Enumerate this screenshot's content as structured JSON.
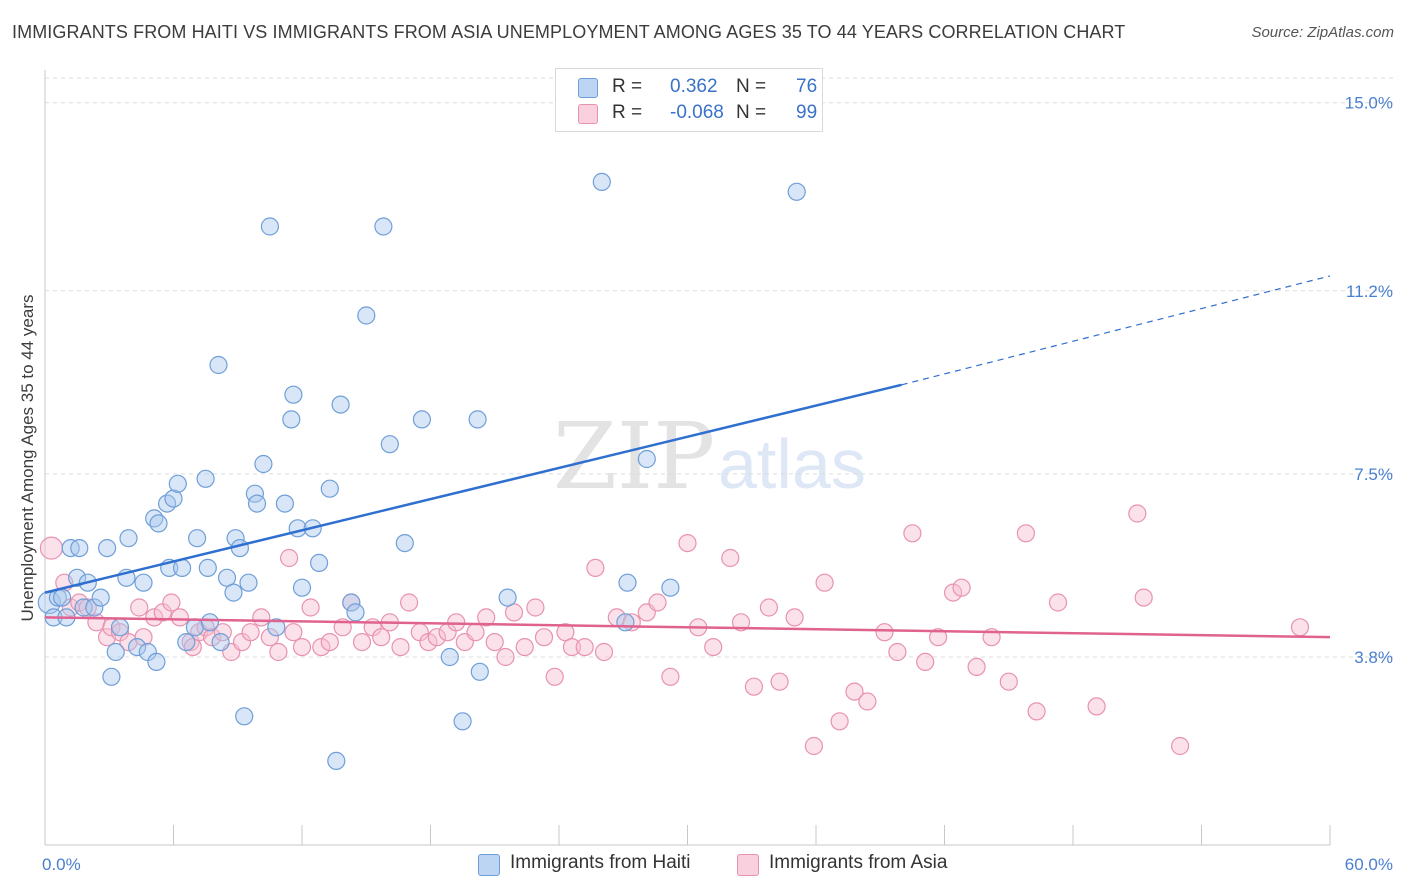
{
  "title": "IMMIGRANTS FROM HAITI VS IMMIGRANTS FROM ASIA UNEMPLOYMENT AMONG AGES 35 TO 44 YEARS CORRELATION CHART",
  "source": "Source: ZipAtlas.com",
  "watermark": {
    "part1": "ZIP",
    "part2": "atlas"
  },
  "legend": {
    "rows": [
      {
        "r_label": "R =",
        "r_value": "0.362",
        "n_label": "N =",
        "n_value": "76"
      },
      {
        "r_label": "R =",
        "r_value": "-0.068",
        "n_label": "N =",
        "n_value": "99"
      }
    ]
  },
  "bottom_legend": {
    "haiti": "Immigrants from Haiti",
    "asia": "Immigrants from Asia"
  },
  "colors": {
    "haiti_fill": "#a8c8ee",
    "haiti_stroke": "#6f9fd8",
    "haiti_line": "#2f6fcf",
    "asia_fill": "#f6bfd0",
    "asia_stroke": "#e892b0",
    "asia_line": "#e0628f",
    "tick_text": "#4a7fd0",
    "grid": "#dcdcdc"
  },
  "chart_data": {
    "type": "scatter",
    "xlabel": "",
    "ylabel": "Unemployment Among Ages 35 to 44 years",
    "xlim": [
      0,
      60
    ],
    "ylim": [
      0,
      15.5
    ],
    "x_tick_labels": [
      {
        "value": 0,
        "label": "0.0%"
      },
      {
        "value": 60,
        "label": "60.0%"
      }
    ],
    "y_tick_labels": [
      {
        "value": 3.8,
        "label": "3.8%"
      },
      {
        "value": 7.5,
        "label": "7.5%"
      },
      {
        "value": 11.2,
        "label": "11.2%"
      },
      {
        "value": 15.0,
        "label": "15.0%"
      }
    ],
    "grid": "horizontal dashed",
    "legend_position": "top-center",
    "series": [
      {
        "name": "Immigrants from Haiti",
        "r": 0.362,
        "n": 76,
        "trend": {
          "x0": 0,
          "y0": 5.1,
          "x1": 40,
          "y1": 9.3,
          "dashed_to_x": 60,
          "dashed_to_y": 11.5
        },
        "points": [
          [
            0.2,
            4.9
          ],
          [
            0.4,
            4.6
          ],
          [
            0.6,
            5.0
          ],
          [
            0.8,
            5.0
          ],
          [
            1.0,
            4.6
          ],
          [
            1.2,
            6.0
          ],
          [
            1.5,
            5.4
          ],
          [
            1.6,
            6.0
          ],
          [
            1.8,
            4.8
          ],
          [
            2.0,
            5.3
          ],
          [
            2.3,
            4.8
          ],
          [
            2.6,
            5.0
          ],
          [
            2.9,
            6.0
          ],
          [
            3.1,
            3.4
          ],
          [
            3.3,
            3.9
          ],
          [
            3.5,
            4.4
          ],
          [
            3.8,
            5.4
          ],
          [
            3.9,
            6.2
          ],
          [
            4.3,
            4.0
          ],
          [
            4.6,
            5.3
          ],
          [
            4.8,
            3.9
          ],
          [
            5.1,
            6.6
          ],
          [
            5.2,
            3.7
          ],
          [
            5.3,
            6.5
          ],
          [
            5.7,
            6.9
          ],
          [
            5.8,
            5.6
          ],
          [
            6.0,
            7.0
          ],
          [
            6.2,
            7.3
          ],
          [
            6.4,
            5.6
          ],
          [
            6.6,
            4.1
          ],
          [
            7.1,
            6.2
          ],
          [
            7.0,
            4.4
          ],
          [
            7.6,
            5.6
          ],
          [
            7.5,
            7.4
          ],
          [
            7.7,
            4.5
          ],
          [
            8.1,
            9.7
          ],
          [
            8.2,
            4.1
          ],
          [
            8.5,
            5.4
          ],
          [
            8.8,
            5.1
          ],
          [
            8.9,
            6.2
          ],
          [
            9.1,
            6.0
          ],
          [
            9.5,
            5.3
          ],
          [
            9.8,
            7.1
          ],
          [
            9.9,
            6.9
          ],
          [
            10.2,
            7.7
          ],
          [
            10.5,
            12.5
          ],
          [
            10.8,
            4.4
          ],
          [
            11.2,
            6.9
          ],
          [
            11.5,
            8.6
          ],
          [
            11.6,
            9.1
          ],
          [
            11.8,
            6.4
          ],
          [
            12.0,
            5.2
          ],
          [
            12.5,
            6.4
          ],
          [
            12.8,
            5.7
          ],
          [
            13.3,
            7.2
          ],
          [
            13.6,
            1.7
          ],
          [
            13.8,
            8.9
          ],
          [
            14.3,
            4.9
          ],
          [
            14.5,
            4.7
          ],
          [
            15.0,
            10.7
          ],
          [
            15.8,
            12.5
          ],
          [
            16.1,
            8.1
          ],
          [
            16.8,
            6.1
          ],
          [
            17.6,
            8.6
          ],
          [
            18.9,
            3.8
          ],
          [
            19.5,
            2.5
          ],
          [
            20.2,
            8.6
          ],
          [
            20.3,
            3.5
          ],
          [
            21.6,
            5.0
          ],
          [
            26.0,
            13.4
          ],
          [
            27.1,
            4.5
          ],
          [
            27.2,
            5.3
          ],
          [
            28.1,
            7.8
          ],
          [
            29.2,
            5.2
          ],
          [
            35.1,
            13.2
          ],
          [
            9.3,
            2.6
          ]
        ]
      },
      {
        "name": "Immigrants from Asia",
        "r": -0.068,
        "n": 99,
        "trend": {
          "x0": 0,
          "y0": 4.6,
          "x1": 60,
          "y1": 4.2
        },
        "points": [
          [
            0.3,
            6.0
          ],
          [
            0.9,
            5.3
          ],
          [
            1.2,
            4.8
          ],
          [
            1.6,
            4.9
          ],
          [
            2.0,
            4.8
          ],
          [
            2.4,
            4.5
          ],
          [
            2.9,
            4.2
          ],
          [
            3.1,
            4.4
          ],
          [
            3.5,
            4.3
          ],
          [
            3.9,
            4.1
          ],
          [
            4.4,
            4.8
          ],
          [
            4.6,
            4.2
          ],
          [
            5.1,
            4.6
          ],
          [
            5.5,
            4.7
          ],
          [
            5.9,
            4.9
          ],
          [
            6.3,
            4.6
          ],
          [
            6.8,
            4.1
          ],
          [
            6.9,
            4.0
          ],
          [
            7.2,
            4.3
          ],
          [
            7.5,
            4.4
          ],
          [
            7.8,
            4.2
          ],
          [
            8.3,
            4.3
          ],
          [
            8.7,
            3.9
          ],
          [
            9.2,
            4.1
          ],
          [
            9.6,
            4.3
          ],
          [
            10.1,
            4.6
          ],
          [
            10.5,
            4.2
          ],
          [
            10.9,
            3.9
          ],
          [
            11.4,
            5.8
          ],
          [
            11.6,
            4.3
          ],
          [
            12.0,
            4.0
          ],
          [
            12.4,
            4.8
          ],
          [
            12.9,
            4.0
          ],
          [
            13.3,
            4.1
          ],
          [
            13.9,
            4.4
          ],
          [
            14.3,
            4.9
          ],
          [
            14.8,
            4.1
          ],
          [
            15.3,
            4.4
          ],
          [
            15.7,
            4.2
          ],
          [
            16.1,
            4.5
          ],
          [
            16.6,
            4.0
          ],
          [
            17.0,
            4.9
          ],
          [
            17.5,
            4.3
          ],
          [
            17.9,
            4.1
          ],
          [
            18.3,
            4.2
          ],
          [
            18.8,
            4.3
          ],
          [
            19.2,
            4.5
          ],
          [
            19.6,
            4.1
          ],
          [
            20.1,
            4.3
          ],
          [
            20.6,
            4.6
          ],
          [
            21.0,
            4.1
          ],
          [
            21.5,
            3.8
          ],
          [
            21.9,
            4.7
          ],
          [
            22.4,
            4.0
          ],
          [
            22.9,
            4.8
          ],
          [
            23.3,
            4.2
          ],
          [
            23.8,
            3.4
          ],
          [
            24.3,
            4.3
          ],
          [
            24.6,
            4.0
          ],
          [
            25.2,
            4.0
          ],
          [
            25.7,
            5.6
          ],
          [
            26.1,
            3.9
          ],
          [
            26.7,
            4.6
          ],
          [
            27.4,
            4.5
          ],
          [
            28.1,
            4.7
          ],
          [
            28.6,
            4.9
          ],
          [
            29.2,
            3.4
          ],
          [
            30.0,
            6.1
          ],
          [
            30.5,
            4.4
          ],
          [
            31.2,
            4.0
          ],
          [
            32.0,
            5.8
          ],
          [
            32.5,
            4.5
          ],
          [
            33.1,
            3.2
          ],
          [
            33.8,
            4.8
          ],
          [
            34.3,
            3.3
          ],
          [
            35.0,
            4.6
          ],
          [
            35.9,
            2.0
          ],
          [
            36.4,
            5.3
          ],
          [
            37.1,
            2.5
          ],
          [
            37.8,
            3.1
          ],
          [
            38.4,
            2.9
          ],
          [
            39.2,
            4.3
          ],
          [
            39.8,
            3.9
          ],
          [
            40.5,
            6.3
          ],
          [
            41.1,
            3.7
          ],
          [
            41.7,
            4.2
          ],
          [
            42.4,
            5.1
          ],
          [
            42.8,
            5.2
          ],
          [
            43.5,
            3.6
          ],
          [
            44.2,
            4.2
          ],
          [
            45.0,
            3.3
          ],
          [
            45.8,
            6.3
          ],
          [
            46.3,
            2.7
          ],
          [
            47.3,
            4.9
          ],
          [
            49.1,
            2.8
          ],
          [
            51.0,
            6.7
          ],
          [
            51.3,
            5.0
          ],
          [
            53.0,
            2.0
          ],
          [
            58.6,
            4.4
          ]
        ]
      }
    ]
  }
}
